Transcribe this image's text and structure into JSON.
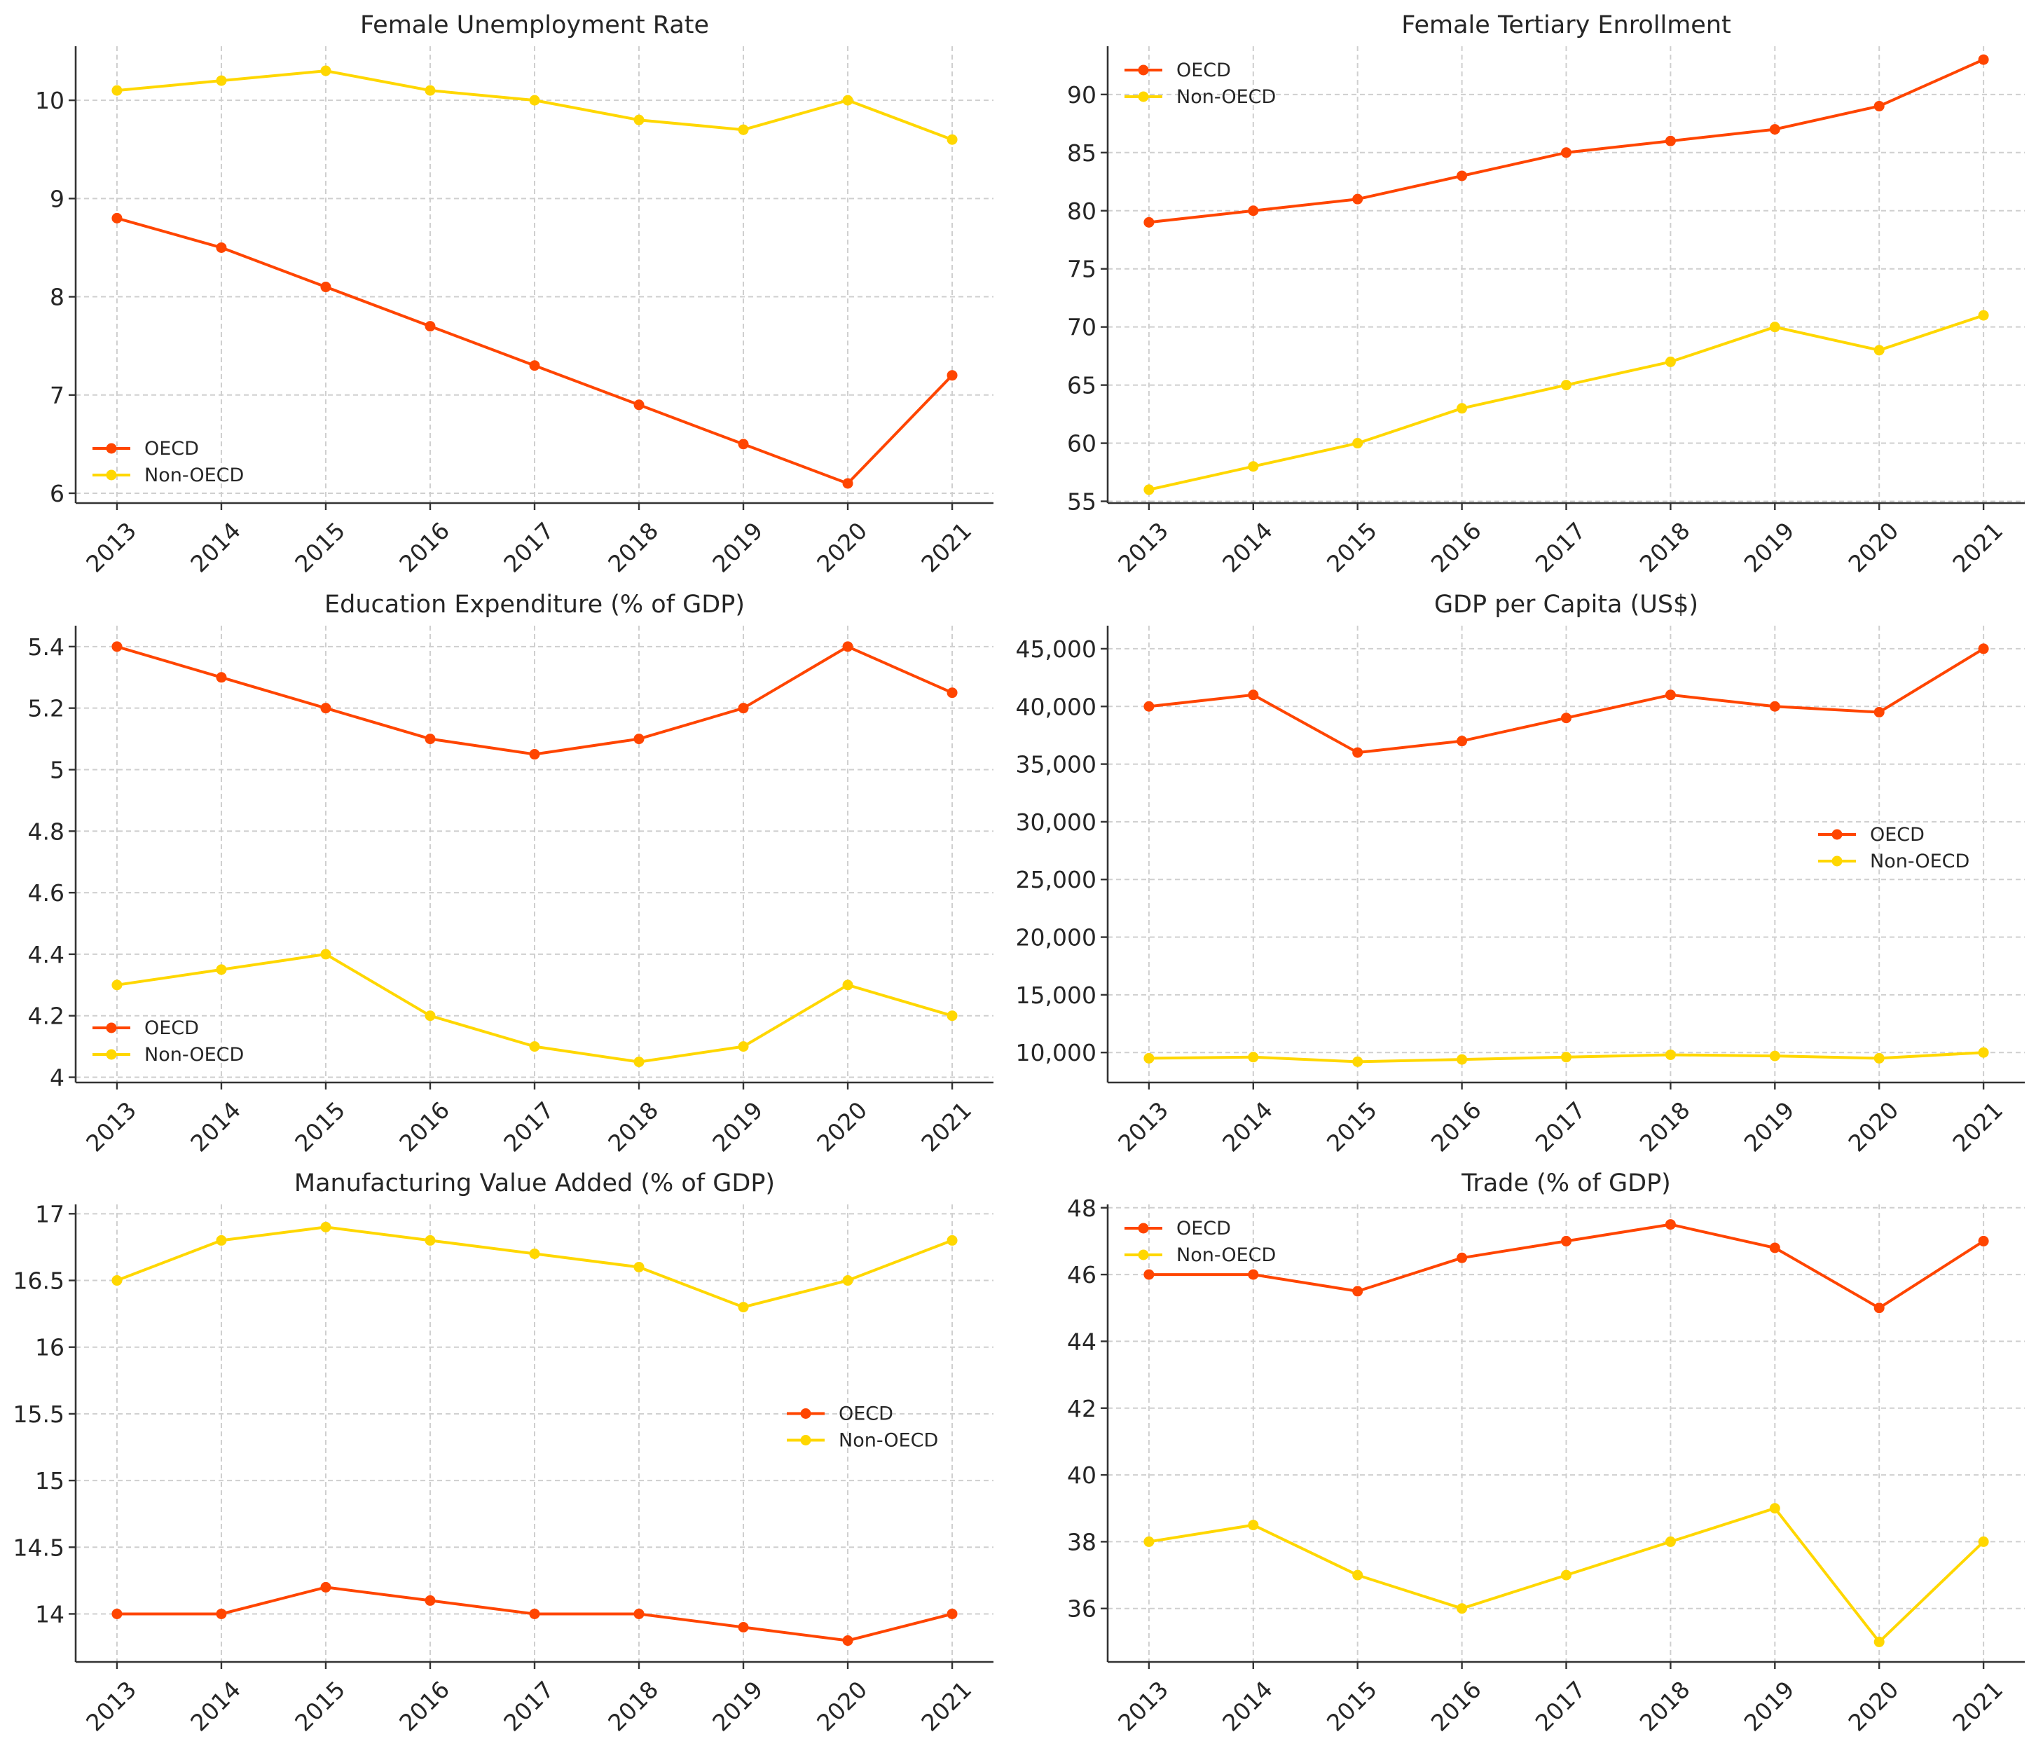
{
  "colors": {
    "oecd": "#ff4500",
    "non_oecd": "#ffd700"
  },
  "chart_data": [
    {
      "type": "line",
      "title": "Female Unemployment Rate",
      "x": [
        "2013",
        "2014",
        "2015",
        "2016",
        "2017",
        "2018",
        "2019",
        "2020",
        "2021"
      ],
      "ylim": [
        5.9,
        10.55
      ],
      "yticks": [
        6,
        7,
        8,
        9,
        10
      ],
      "ytick_labels": [
        "6",
        "7",
        "8",
        "9",
        "10"
      ],
      "legend_position": "lower-left",
      "grid": true,
      "series": [
        {
          "name": "OECD",
          "color": "#ff4500",
          "values": [
            8.8,
            8.5,
            8.1,
            7.7,
            7.3,
            6.9,
            6.5,
            6.1,
            7.2
          ]
        },
        {
          "name": "Non-OECD",
          "color": "#ffd700",
          "values": [
            10.1,
            10.2,
            10.3,
            10.1,
            10.0,
            9.8,
            9.7,
            10.0,
            9.6
          ]
        }
      ]
    },
    {
      "type": "line",
      "title": "Female Tertiary Enrollment",
      "x": [
        "2013",
        "2014",
        "2015",
        "2016",
        "2017",
        "2018",
        "2019",
        "2020",
        "2021"
      ],
      "ylim": [
        54.85,
        94.15
      ],
      "yticks": [
        55,
        60,
        65,
        70,
        75,
        80,
        85,
        90
      ],
      "ytick_labels": [
        "55",
        "60",
        "65",
        "70",
        "75",
        "80",
        "85",
        "90"
      ],
      "legend_position": "upper-left",
      "grid": true,
      "series": [
        {
          "name": "OECD",
          "color": "#ff4500",
          "values": [
            79,
            80,
            81,
            83,
            85,
            86,
            87,
            89,
            93
          ]
        },
        {
          "name": "Non-OECD",
          "color": "#ffd700",
          "values": [
            56,
            58,
            60,
            63,
            65,
            67,
            70,
            68,
            71
          ]
        }
      ]
    },
    {
      "type": "line",
      "title": "Education Expenditure (% of GDP)",
      "x": [
        "2013",
        "2014",
        "2015",
        "2016",
        "2017",
        "2018",
        "2019",
        "2020",
        "2021"
      ],
      "ylim": [
        3.983,
        5.468
      ],
      "yticks": [
        4,
        4.2,
        4.4,
        4.6,
        4.8,
        5,
        5.2,
        5.4
      ],
      "ytick_labels": [
        "4",
        "4.2",
        "4.4",
        "4.6",
        "4.8",
        "5",
        "5.2",
        "5.4"
      ],
      "legend_position": "lower-left",
      "grid": true,
      "series": [
        {
          "name": "OECD",
          "color": "#ff4500",
          "values": [
            5.4,
            5.3,
            5.2,
            5.1,
            5.05,
            5.1,
            5.2,
            5.4,
            5.25
          ]
        },
        {
          "name": "Non-OECD",
          "color": "#ffd700",
          "values": [
            4.3,
            4.35,
            4.4,
            4.2,
            4.1,
            4.05,
            4.1,
            4.3,
            4.2
          ]
        }
      ]
    },
    {
      "type": "line",
      "title": "GDP per Capita (US$)",
      "x": [
        "2013",
        "2014",
        "2015",
        "2016",
        "2017",
        "2018",
        "2019",
        "2020",
        "2021"
      ],
      "ylim": [
        7400,
        47000
      ],
      "yticks": [
        10000,
        15000,
        20000,
        25000,
        30000,
        35000,
        40000,
        45000
      ],
      "ytick_labels": [
        "10,000",
        "15,000",
        "20,000",
        "25,000",
        "30,000",
        "35,000",
        "40,000",
        "45,000"
      ],
      "legend_position": "center-right",
      "grid": true,
      "series": [
        {
          "name": "OECD",
          "color": "#ff4500",
          "values": [
            40000,
            41000,
            36000,
            37000,
            39000,
            41000,
            40000,
            39500,
            45000
          ]
        },
        {
          "name": "Non-OECD",
          "color": "#ffd700",
          "values": [
            9500,
            9600,
            9200,
            9400,
            9600,
            9800,
            9700,
            9500,
            10000
          ]
        }
      ]
    },
    {
      "type": "line",
      "title": "Manufacturing Value Added (% of GDP)",
      "x": [
        "2013",
        "2014",
        "2015",
        "2016",
        "2017",
        "2018",
        "2019",
        "2020",
        "2021"
      ],
      "ylim": [
        13.64,
        17.07
      ],
      "yticks": [
        14,
        14.5,
        15,
        15.5,
        16,
        16.5,
        17
      ],
      "ytick_labels": [
        "14",
        "14.5",
        "15",
        "15.5",
        "16",
        "16.5",
        "17"
      ],
      "legend_position": "center-right",
      "grid": true,
      "series": [
        {
          "name": "OECD",
          "color": "#ff4500",
          "values": [
            14.0,
            14.0,
            14.2,
            14.1,
            14.0,
            14.0,
            13.9,
            13.8,
            14.0
          ]
        },
        {
          "name": "Non-OECD",
          "color": "#ffd700",
          "values": [
            16.5,
            16.8,
            16.9,
            16.8,
            16.7,
            16.6,
            16.3,
            16.5,
            16.8
          ]
        }
      ]
    },
    {
      "type": "line",
      "title": "Trade (% of GDP)",
      "x": [
        "2013",
        "2014",
        "2015",
        "2016",
        "2017",
        "2018",
        "2019",
        "2020",
        "2021"
      ],
      "ylim": [
        34.4,
        48.1
      ],
      "yticks": [
        36,
        38,
        40,
        42,
        44,
        46,
        48
      ],
      "ytick_labels": [
        "36",
        "38",
        "40",
        "42",
        "44",
        "46",
        "48"
      ],
      "legend_position": "upper-left",
      "grid": true,
      "series": [
        {
          "name": "OECD",
          "color": "#ff4500",
          "values": [
            46.0,
            46.0,
            45.5,
            46.5,
            47.0,
            47.5,
            46.8,
            45.0,
            47.0
          ]
        },
        {
          "name": "Non-OECD",
          "color": "#ffd700",
          "values": [
            38.0,
            38.5,
            37.0,
            36.0,
            37.0,
            38.0,
            39.0,
            35.0,
            38.0
          ]
        }
      ]
    }
  ]
}
